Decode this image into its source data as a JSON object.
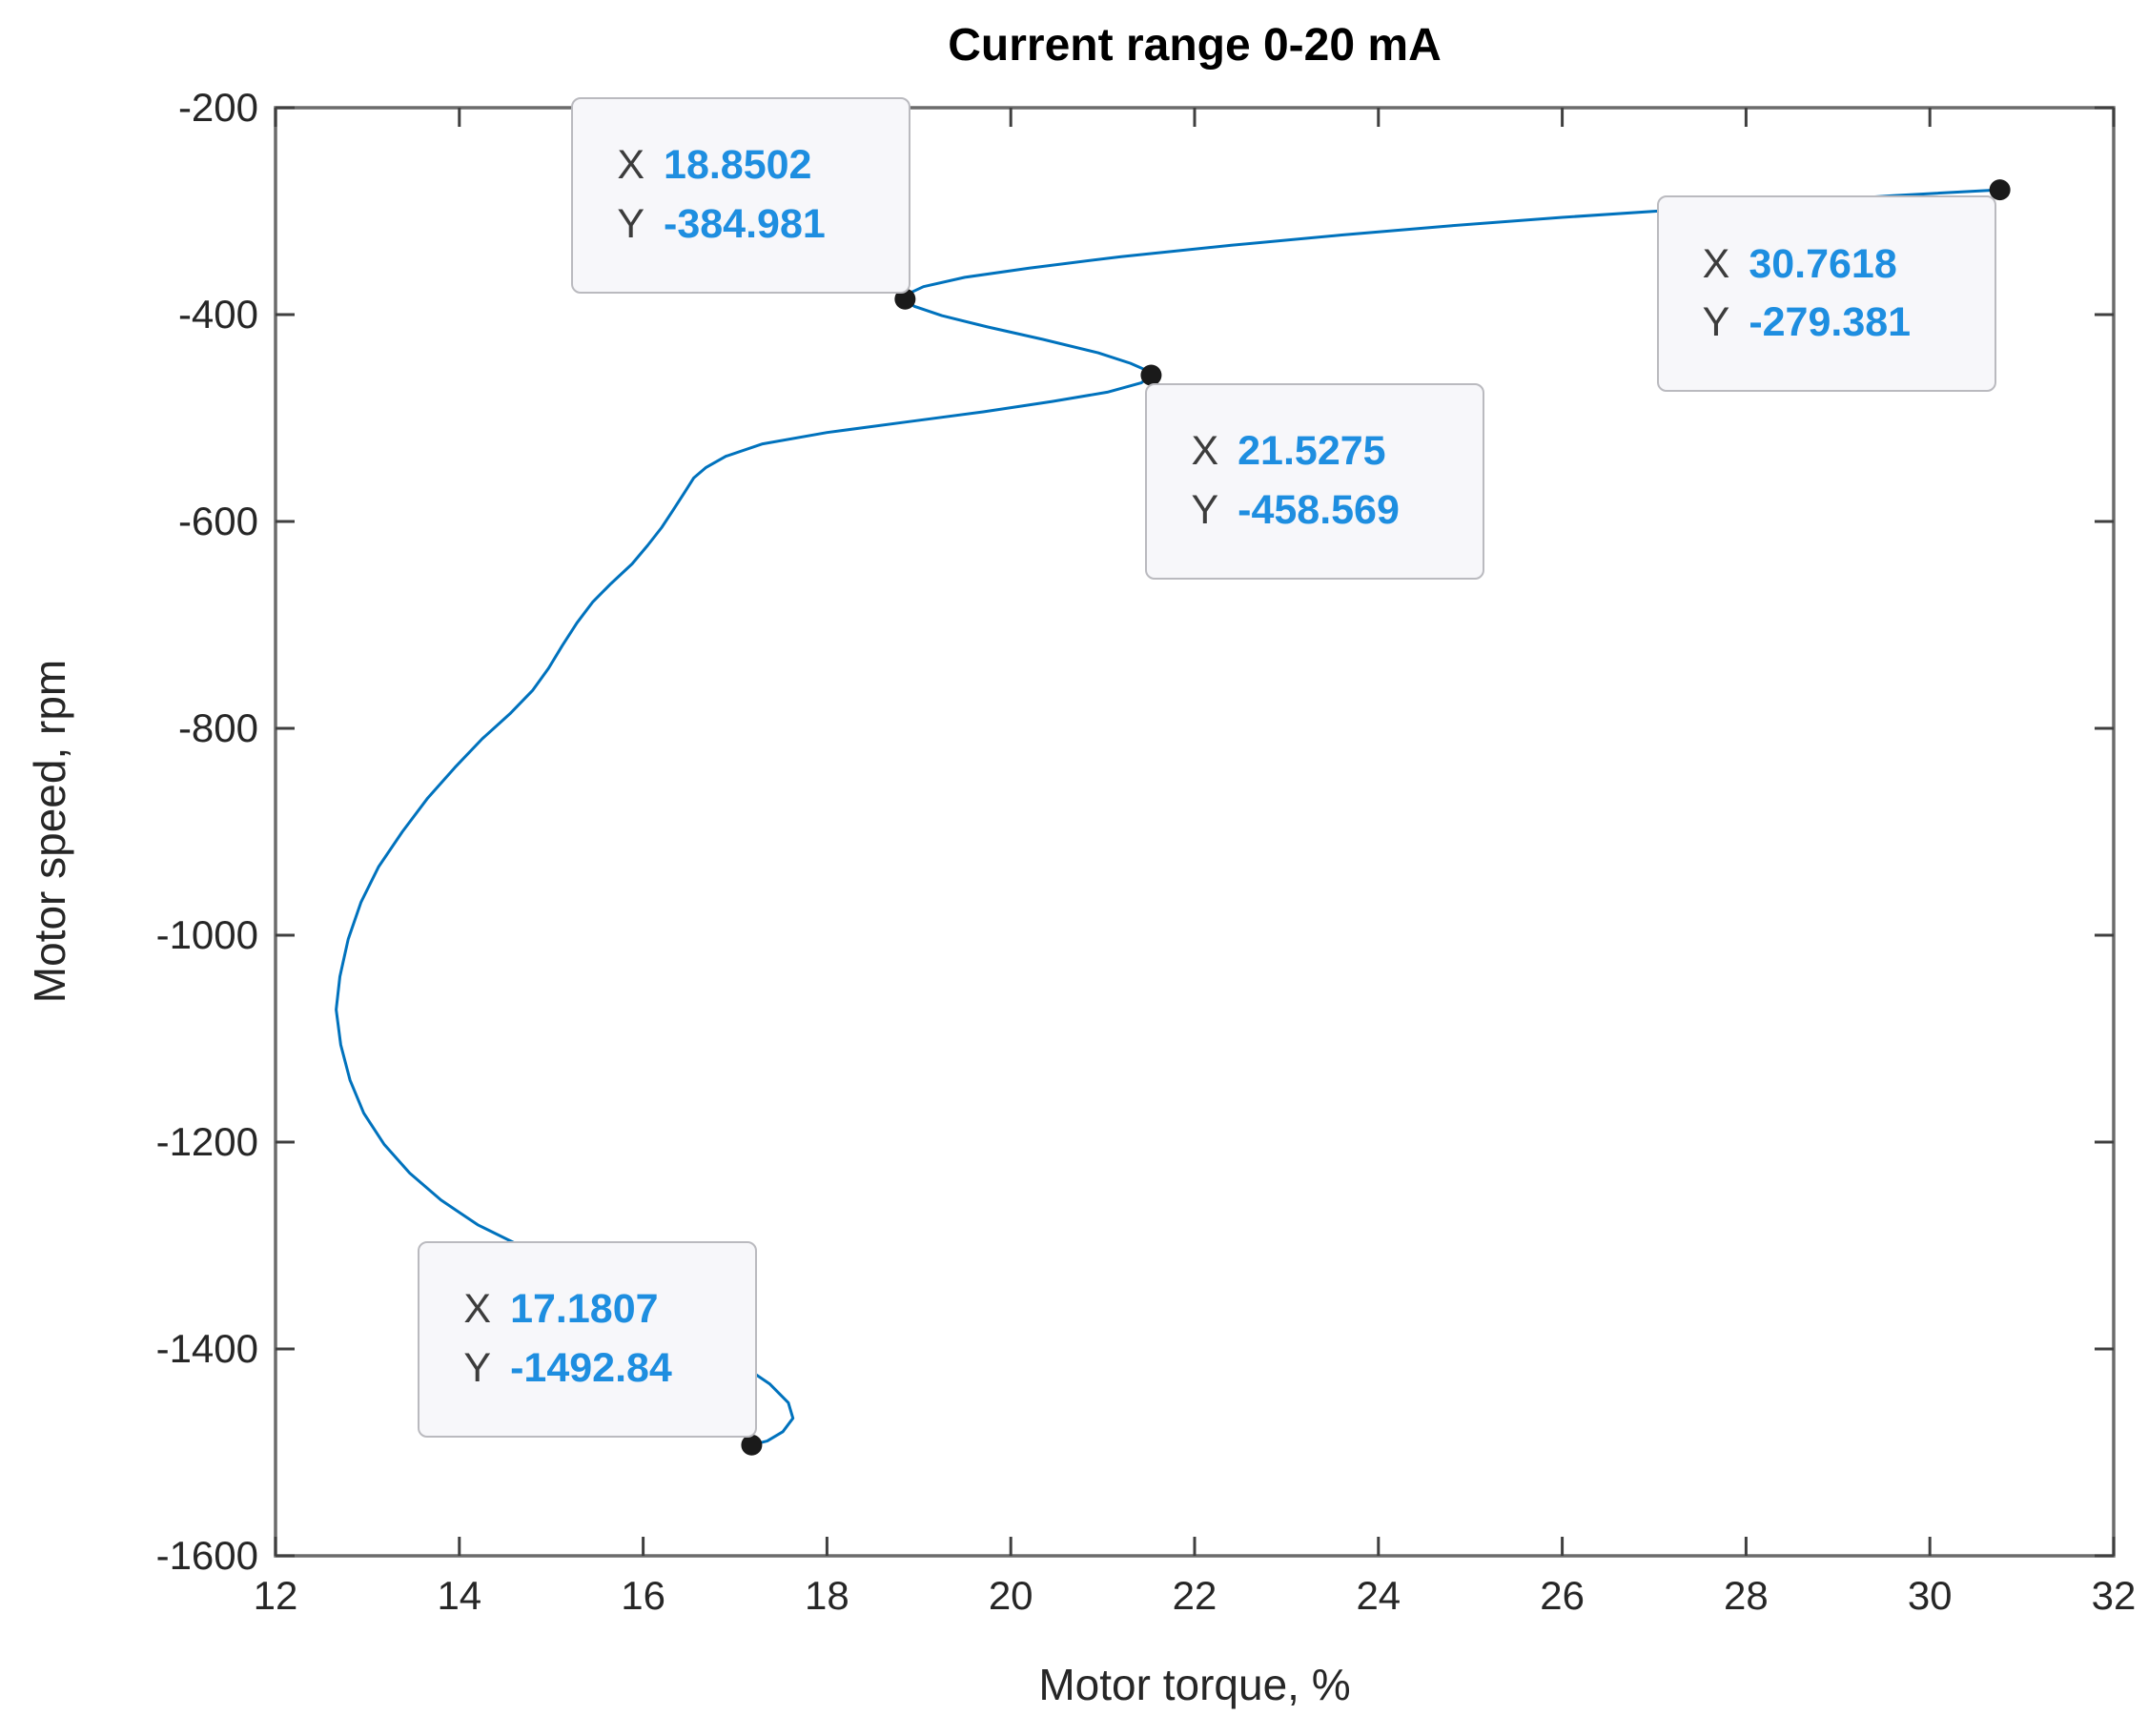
{
  "figure": {
    "background": "#FFFFFF"
  },
  "colors": {
    "line": "#0072BD",
    "marker": "#1A1A1A",
    "axis_line": "#6B6B6B",
    "tick": "#3F3F3F",
    "tick_label": "#262626",
    "title": "#000000",
    "datatip_bg": "#F7F7FA",
    "datatip_border": "#BABABF",
    "datatip_letter": "#3C3C3C",
    "datatip_value": "#1E8EE0"
  },
  "chart_data": {
    "type": "line",
    "title": "Current range 0-20 mA",
    "xlabel": "Motor torque, %",
    "ylabel": "Motor speed, rpm",
    "xlim": [
      12,
      32
    ],
    "ylim": [
      -1600,
      -200
    ],
    "grid": false,
    "axes_box": true,
    "tick_direction": "in",
    "legend": null,
    "x_ticks": [
      {
        "value": 12,
        "label": "12"
      },
      {
        "value": 14,
        "label": "14"
      },
      {
        "value": 16,
        "label": "16"
      },
      {
        "value": 18,
        "label": "18"
      },
      {
        "value": 20,
        "label": "20"
      },
      {
        "value": 22,
        "label": "22"
      },
      {
        "value": 24,
        "label": "24"
      },
      {
        "value": 26,
        "label": "26"
      },
      {
        "value": 28,
        "label": "28"
      },
      {
        "value": 30,
        "label": "30"
      },
      {
        "value": 32,
        "label": "32"
      }
    ],
    "y_ticks": [
      {
        "value": -200,
        "label": "-200"
      },
      {
        "value": -400,
        "label": "-400"
      },
      {
        "value": -600,
        "label": "-600"
      },
      {
        "value": -800,
        "label": "-800"
      },
      {
        "value": -1000,
        "label": "-1000"
      },
      {
        "value": -1200,
        "label": "-1200"
      },
      {
        "value": -1400,
        "label": "-1400"
      },
      {
        "value": -1600,
        "label": "-1600"
      }
    ],
    "series": [
      {
        "points": [
          [
            30.7618,
            -279.381
          ],
          [
            29.6,
            -285
          ],
          [
            28.4,
            -292
          ],
          [
            27.2,
            -299
          ],
          [
            26.0,
            -306
          ],
          [
            24.8,
            -314
          ],
          [
            23.6,
            -323
          ],
          [
            22.4,
            -333
          ],
          [
            21.2,
            -344
          ],
          [
            20.2,
            -355
          ],
          [
            19.5,
            -364
          ],
          [
            19.05,
            -373
          ],
          [
            18.88,
            -380
          ],
          [
            18.8502,
            -384.981
          ],
          [
            18.95,
            -392
          ],
          [
            19.25,
            -401
          ],
          [
            19.75,
            -412
          ],
          [
            20.35,
            -424
          ],
          [
            20.95,
            -437
          ],
          [
            21.3,
            -447
          ],
          [
            21.48,
            -454
          ],
          [
            21.5275,
            -458.569
          ],
          [
            21.42,
            -466
          ],
          [
            21.05,
            -475
          ],
          [
            20.45,
            -484
          ],
          [
            19.7,
            -494
          ],
          [
            18.85,
            -504
          ],
          [
            18.0,
            -514
          ],
          [
            17.3,
            -525
          ],
          [
            16.9,
            -537
          ],
          [
            16.68,
            -548
          ],
          [
            16.55,
            -558
          ],
          [
            16.45,
            -572
          ],
          [
            16.32,
            -590
          ],
          [
            16.2,
            -606
          ],
          [
            16.05,
            -623
          ],
          [
            15.88,
            -641
          ],
          [
            15.65,
            -660
          ],
          [
            15.45,
            -678
          ],
          [
            15.28,
            -698
          ],
          [
            15.12,
            -720
          ],
          [
            14.97,
            -742
          ],
          [
            14.8,
            -763
          ],
          [
            14.55,
            -786
          ],
          [
            14.25,
            -810
          ],
          [
            13.95,
            -838
          ],
          [
            13.65,
            -868
          ],
          [
            13.38,
            -900
          ],
          [
            13.12,
            -934
          ],
          [
            12.93,
            -968
          ],
          [
            12.79,
            -1004
          ],
          [
            12.7,
            -1040
          ],
          [
            12.66,
            -1072
          ],
          [
            12.71,
            -1106
          ],
          [
            12.81,
            -1140
          ],
          [
            12.96,
            -1172
          ],
          [
            13.18,
            -1202
          ],
          [
            13.46,
            -1230
          ],
          [
            13.8,
            -1256
          ],
          [
            14.2,
            -1280
          ],
          [
            14.68,
            -1301
          ],
          [
            15.18,
            -1322
          ],
          [
            15.68,
            -1344
          ],
          [
            16.16,
            -1367
          ],
          [
            16.62,
            -1391
          ],
          [
            17.05,
            -1414
          ],
          [
            17.38,
            -1434
          ],
          [
            17.58,
            -1452
          ],
          [
            17.63,
            -1467
          ],
          [
            17.52,
            -1480
          ],
          [
            17.35,
            -1489
          ],
          [
            17.1807,
            -1492.84
          ]
        ]
      }
    ],
    "datatips": [
      {
        "x_label": "X",
        "y_label": "Y",
        "x_value": "18.8502",
        "y_value": "-384.981",
        "x": 18.8502,
        "y": -384.981,
        "box_dx": -350,
        "box_dy": -212
      },
      {
        "x_label": "X",
        "y_label": "Y",
        "x_value": "30.7618",
        "y_value": "-279.381",
        "x": 30.7618,
        "y": -279.381,
        "box_dx": -360,
        "box_dy": 6
      },
      {
        "x_label": "X",
        "y_label": "Y",
        "x_value": "21.5275",
        "y_value": "-458.569",
        "x": 21.5275,
        "y": -458.569,
        "box_dx": -6,
        "box_dy": 8
      },
      {
        "x_label": "X",
        "y_label": "Y",
        "x_value": "17.1807",
        "y_value": "-1492.84",
        "x": 17.1807,
        "y": -1492.84,
        "box_dx": -350,
        "box_dy": -214
      }
    ]
  }
}
